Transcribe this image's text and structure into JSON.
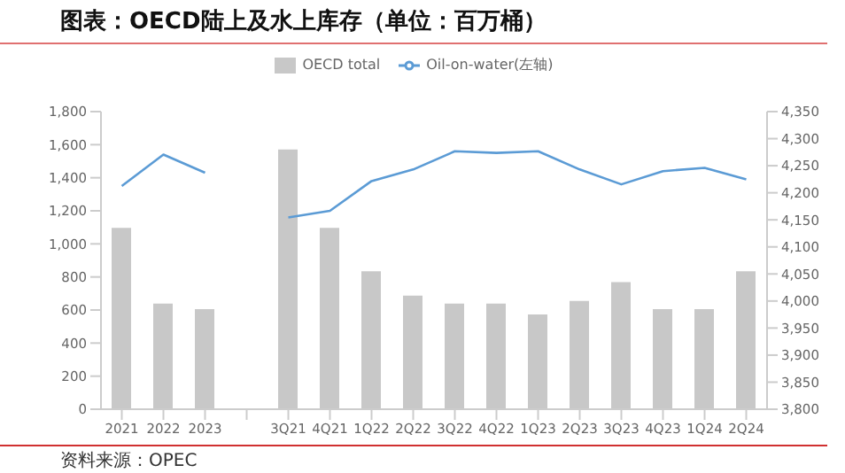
{
  "chart_data": {
    "type": "bar",
    "title": "图表：OECD陆上及水上库存（单位：百万桶）",
    "categories": [
      "2021",
      "2022",
      "2023",
      null,
      "3Q21",
      "4Q21",
      "1Q22",
      "2Q22",
      "3Q22",
      "4Q22",
      "1Q23",
      "2Q23",
      "3Q23",
      "4Q23",
      "1Q24",
      "2Q24"
    ],
    "series": [
      {
        "name": "OECD total",
        "axis": "y2",
        "color": "#c8c8c8",
        "values": [
          4135,
          3995,
          3985,
          null,
          4280,
          4135,
          4055,
          4010,
          3995,
          3995,
          3975,
          4000,
          4035,
          3985,
          3985,
          4055
        ]
      },
      {
        "name": "Oil-on-water(左轴)",
        "type": "line",
        "axis": "y",
        "color": "#5b9bd5",
        "values": [
          1350,
          1540,
          1430,
          null,
          1160,
          1200,
          1380,
          1450,
          1560,
          1550,
          1560,
          1450,
          1360,
          1440,
          1460,
          1390
        ]
      }
    ],
    "ylim": [
      0,
      1800
    ],
    "yticks": [
      0,
      200,
      400,
      600,
      800,
      {
        "value": 1000,
        "label": "1,000"
      },
      {
        "value": 1200,
        "label": "1,200"
      },
      {
        "value": 1400,
        "label": "1,400"
      },
      {
        "value": 1600,
        "label": "1,600"
      },
      {
        "value": 1800,
        "label": "1,800"
      }
    ],
    "y2lim": [
      3800,
      4350
    ],
    "y2ticks": [
      {
        "value": 3800,
        "label": "3,800"
      },
      {
        "value": 3850,
        "label": "3,850"
      },
      {
        "value": 3900,
        "label": "3,900"
      },
      {
        "value": 3950,
        "label": "3,950"
      },
      {
        "value": 4000,
        "label": "4,000"
      },
      {
        "value": 4050,
        "label": "4,050"
      },
      {
        "value": 4100,
        "label": "4,100"
      },
      {
        "value": 4150,
        "label": "4,150"
      },
      {
        "value": 4200,
        "label": "4,200"
      },
      {
        "value": 4250,
        "label": "4,250"
      },
      {
        "value": 4300,
        "label": "4,300"
      },
      {
        "value": 4350,
        "label": "4,350"
      }
    ],
    "grid": false,
    "legend": "top",
    "marker": "none",
    "line_style": "solid",
    "annotations": [
      "资料来源：OPEC"
    ]
  }
}
